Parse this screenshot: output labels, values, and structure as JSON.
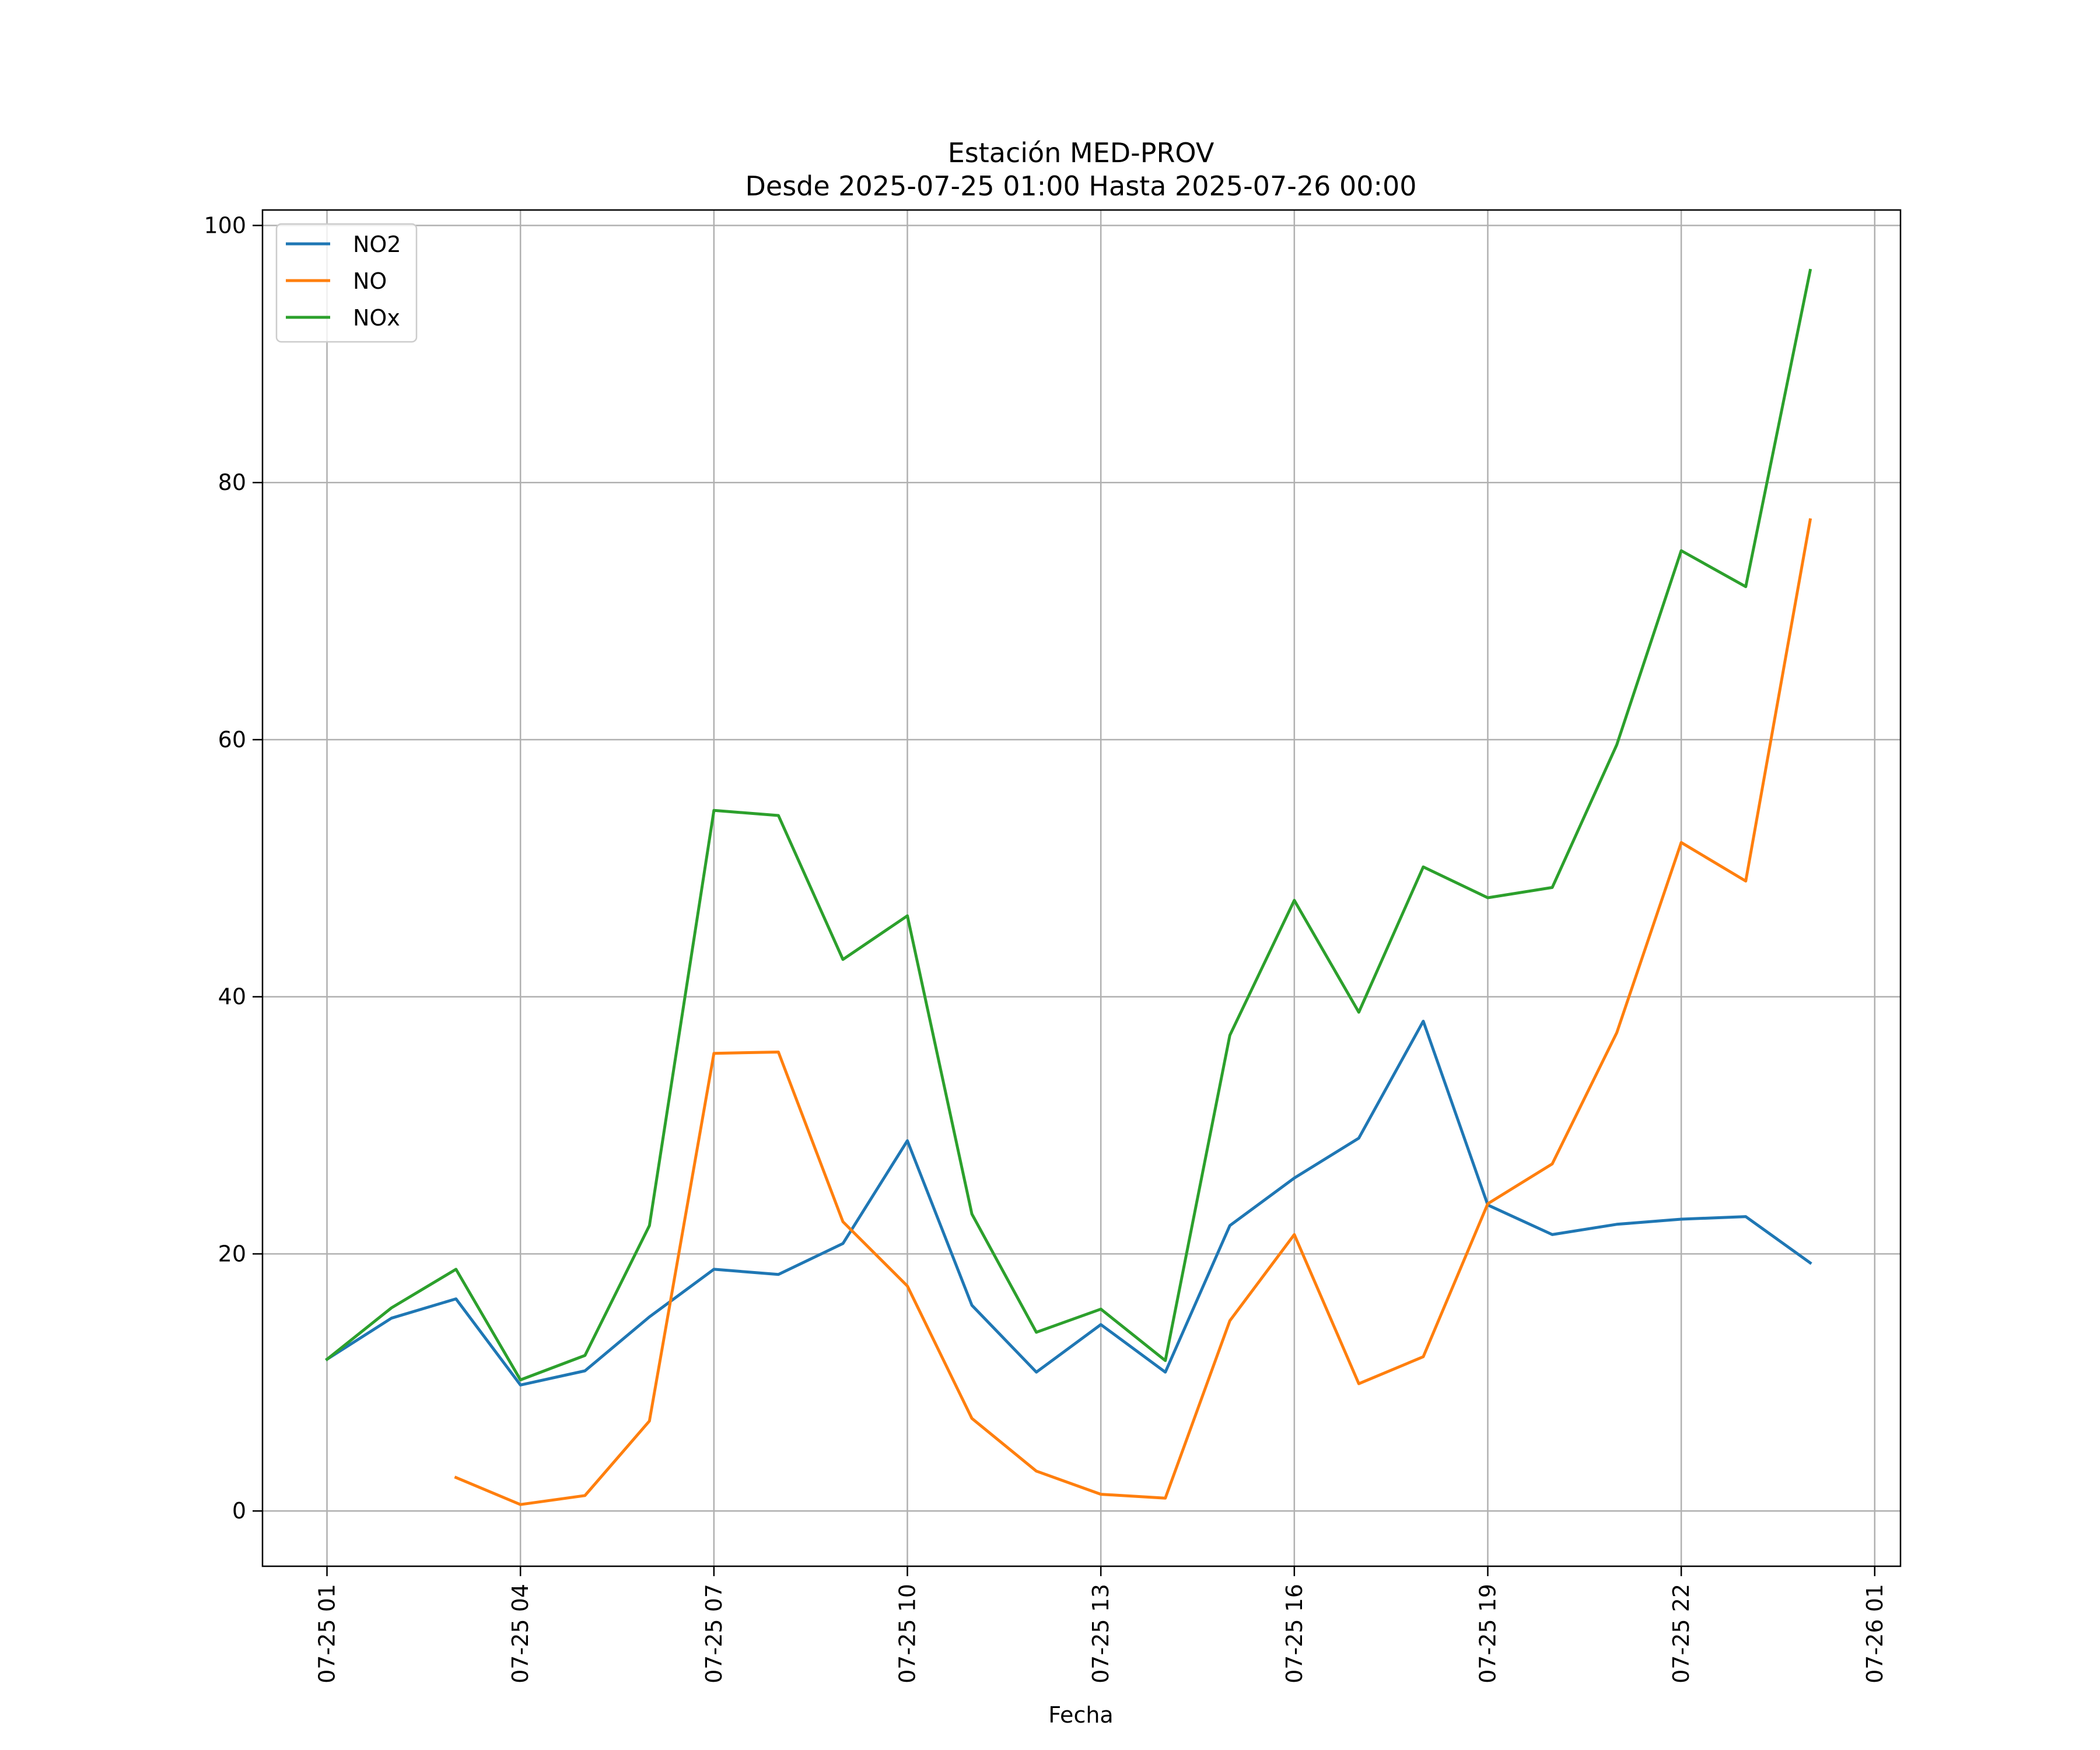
{
  "chart_data": {
    "type": "line",
    "title": "Estación MED-PROV",
    "subtitle": "Desde 2025-07-25 01:00 Hasta 2025-07-26 00:00",
    "xlabel": "Fecha",
    "ylabel": "",
    "ylim": [
      -4.3,
      101.2
    ],
    "xlim": [
      "2025-07-25 00:00",
      "2025-07-26 01:24"
    ],
    "y_ticks": [
      0,
      20,
      40,
      60,
      80,
      100
    ],
    "x_ticks": [
      {
        "value": "2025-07-25 01:00",
        "label": "07-25 01"
      },
      {
        "value": "2025-07-25 04:00",
        "label": "07-25 04"
      },
      {
        "value": "2025-07-25 07:00",
        "label": "07-25 07"
      },
      {
        "value": "2025-07-25 10:00",
        "label": "07-25 10"
      },
      {
        "value": "2025-07-25 13:00",
        "label": "07-25 13"
      },
      {
        "value": "2025-07-25 16:00",
        "label": "07-25 16"
      },
      {
        "value": "2025-07-25 19:00",
        "label": "07-25 19"
      },
      {
        "value": "2025-07-25 22:00",
        "label": "07-25 22"
      },
      {
        "value": "2025-07-26 01:00",
        "label": "07-26 01"
      }
    ],
    "x": [
      "2025-07-25 01:00",
      "2025-07-25 02:00",
      "2025-07-25 03:00",
      "2025-07-25 04:00",
      "2025-07-25 05:00",
      "2025-07-25 06:00",
      "2025-07-25 07:00",
      "2025-07-25 08:00",
      "2025-07-25 09:00",
      "2025-07-25 10:00",
      "2025-07-25 11:00",
      "2025-07-25 12:00",
      "2025-07-25 13:00",
      "2025-07-25 14:00",
      "2025-07-25 15:00",
      "2025-07-25 16:00",
      "2025-07-25 17:00",
      "2025-07-25 18:00",
      "2025-07-25 19:00",
      "2025-07-25 20:00",
      "2025-07-25 21:00",
      "2025-07-25 22:00",
      "2025-07-25 23:00",
      "2025-07-26 00:00"
    ],
    "series": [
      {
        "name": "NO2",
        "color": "#1f77b4",
        "values": [
          11.8,
          15.0,
          16.5,
          9.8,
          10.9,
          15.1,
          18.8,
          18.4,
          20.8,
          28.8,
          16.0,
          10.8,
          14.5,
          10.8,
          22.2,
          25.9,
          29.0,
          38.1,
          23.8,
          21.5,
          22.3,
          22.7,
          22.9,
          19.3
        ]
      },
      {
        "name": "NO",
        "color": "#ff7f0e",
        "values": [
          null,
          null,
          2.6,
          0.5,
          1.2,
          7.0,
          35.6,
          35.7,
          22.5,
          17.5,
          7.2,
          3.1,
          1.3,
          1.0,
          14.8,
          21.5,
          9.9,
          12.0,
          23.9,
          27.0,
          37.2,
          52.0,
          49.0,
          77.1
        ]
      },
      {
        "name": "NOx",
        "color": "#2ca02c",
        "values": [
          11.8,
          15.8,
          18.8,
          10.2,
          12.1,
          22.2,
          54.5,
          54.1,
          42.9,
          46.3,
          23.1,
          13.9,
          15.7,
          11.7,
          37.0,
          47.5,
          38.8,
          50.1,
          47.7,
          48.5,
          59.6,
          74.7,
          71.9,
          96.5
        ]
      }
    ],
    "grid": true,
    "legend_position": "top-left"
  }
}
